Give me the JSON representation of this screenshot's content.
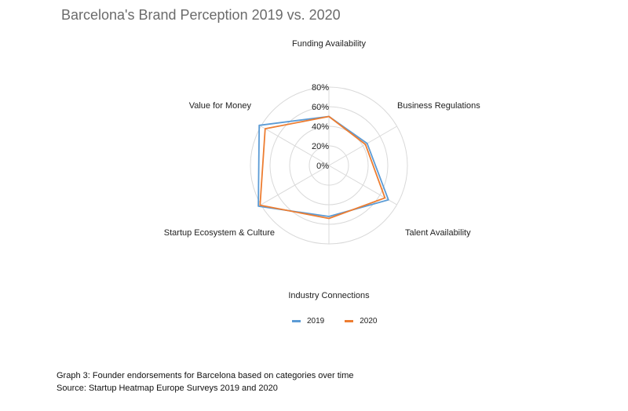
{
  "title": "Barcelona's Brand Perception 2019 vs. 2020",
  "chart_data": {
    "type": "radar",
    "categories": [
      "Funding Availability",
      "Business Regulations",
      "Talent Availability",
      "Industry Connections",
      "Startup Ecosystem & Culture",
      "Value for Money"
    ],
    "series": [
      {
        "name": "2019",
        "color": "#5b9bd5",
        "values": [
          50,
          45,
          70,
          52,
          83,
          82
        ]
      },
      {
        "name": "2020",
        "color": "#ed7d31",
        "values": [
          50,
          43,
          66,
          54,
          81,
          75
        ]
      }
    ],
    "r_axis": {
      "min": 0,
      "max": 80,
      "step": 20,
      "tick_labels": [
        "0%",
        "20%",
        "40%",
        "60%",
        "80%"
      ]
    },
    "grid": true,
    "legend_position": "bottom"
  },
  "captions": {
    "line1": "Graph 3: Founder endorsements for Barcelona based on categories over time",
    "line2": "Source: Startup Heatmap Europe Surveys 2019 and 2020"
  }
}
